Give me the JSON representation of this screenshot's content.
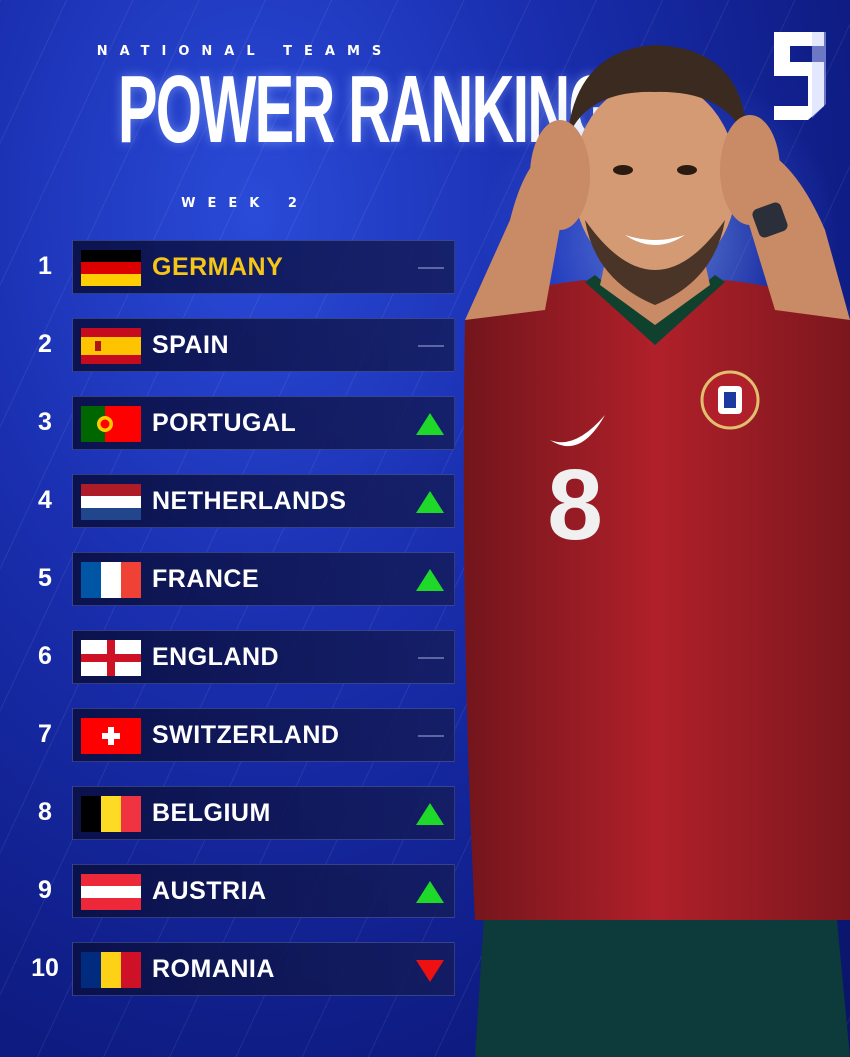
{
  "header": {
    "kicker": "NATIONAL TEAMS",
    "title": "POWER RANKINGS",
    "week": "WEEK 2"
  },
  "player": {
    "shirt_number": "8"
  },
  "rankings": [
    {
      "rank": "1",
      "country": "GERMANY",
      "trend": "none",
      "flag": "germany-flag"
    },
    {
      "rank": "2",
      "country": "SPAIN",
      "trend": "none",
      "flag": "spain-flag"
    },
    {
      "rank": "3",
      "country": "PORTUGAL",
      "trend": "up",
      "flag": "portugal-flag"
    },
    {
      "rank": "4",
      "country": "NETHERLANDS",
      "trend": "up",
      "flag": "netherlands-flag"
    },
    {
      "rank": "5",
      "country": "FRANCE",
      "trend": "up",
      "flag": "france-flag"
    },
    {
      "rank": "6",
      "country": "ENGLAND",
      "trend": "none",
      "flag": "england-flag"
    },
    {
      "rank": "7",
      "country": "SWITZERLAND",
      "trend": "none",
      "flag": "switzerland-flag"
    },
    {
      "rank": "8",
      "country": "BELGIUM",
      "trend": "up",
      "flag": "belgium-flag"
    },
    {
      "rank": "9",
      "country": "AUSTRIA",
      "trend": "up",
      "flag": "austria-flag"
    },
    {
      "rank": "10",
      "country": "ROMANIA",
      "trend": "down",
      "flag": "romania-flag"
    }
  ],
  "colors": {
    "leader": "#f5c518",
    "up": "#1ed82a",
    "down": "#ee1111",
    "background": "#1a2fb0"
  }
}
